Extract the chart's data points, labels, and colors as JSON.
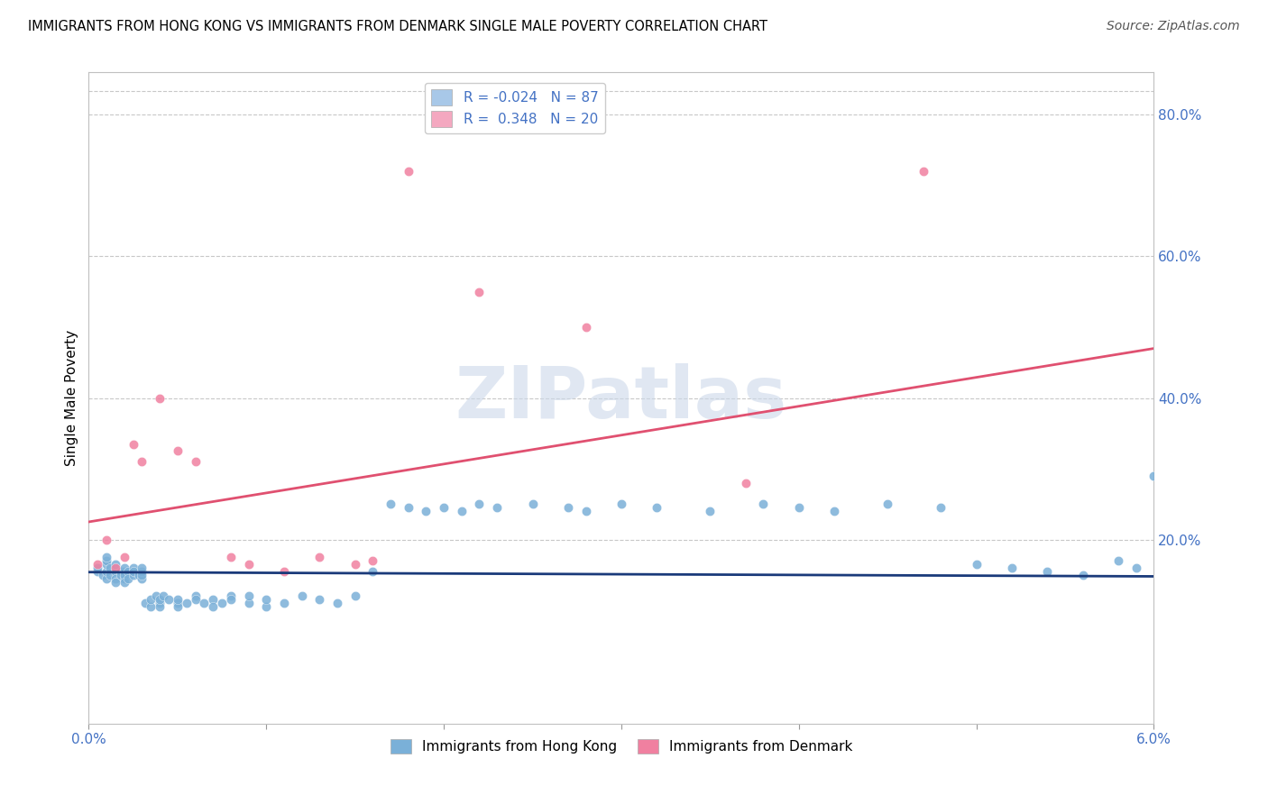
{
  "title": "IMMIGRANTS FROM HONG KONG VS IMMIGRANTS FROM DENMARK SINGLE MALE POVERTY CORRELATION CHART",
  "source": "Source: ZipAtlas.com",
  "ylabel": "Single Male Poverty",
  "right_yticks": [
    "80.0%",
    "60.0%",
    "40.0%",
    "20.0%"
  ],
  "right_ytick_vals": [
    0.8,
    0.6,
    0.4,
    0.2
  ],
  "xmin": 0.0,
  "xmax": 0.06,
  "ymin": -0.06,
  "ymax": 0.86,
  "legend_entry_1_label_r": "R = -0.024",
  "legend_entry_1_label_n": "N = 87",
  "legend_entry_2_label_r": "R =  0.348",
  "legend_entry_2_label_n": "N = 20",
  "legend_color_1": "#a8c8e8",
  "legend_color_2": "#f4a8c0",
  "hk_color": "#7ab0d8",
  "dk_color": "#f080a0",
  "hk_line_color": "#1a3a7a",
  "dk_line_color": "#e05070",
  "watermark": "ZIPatlas",
  "hk_x": [
    0.0005,
    0.0005,
    0.0008,
    0.001,
    0.001,
    0.001,
    0.001,
    0.0012,
    0.0012,
    0.0015,
    0.0015,
    0.0015,
    0.0015,
    0.0018,
    0.0018,
    0.002,
    0.002,
    0.002,
    0.002,
    0.002,
    0.0022,
    0.0022,
    0.0025,
    0.0025,
    0.0025,
    0.0028,
    0.003,
    0.003,
    0.003,
    0.003,
    0.0032,
    0.0035,
    0.0035,
    0.0038,
    0.004,
    0.004,
    0.004,
    0.0042,
    0.0045,
    0.005,
    0.005,
    0.005,
    0.0055,
    0.006,
    0.006,
    0.0065,
    0.007,
    0.007,
    0.0075,
    0.008,
    0.008,
    0.009,
    0.009,
    0.01,
    0.01,
    0.011,
    0.012,
    0.013,
    0.014,
    0.015,
    0.016,
    0.017,
    0.018,
    0.019,
    0.02,
    0.021,
    0.022,
    0.023,
    0.025,
    0.027,
    0.028,
    0.03,
    0.032,
    0.035,
    0.038,
    0.04,
    0.042,
    0.045,
    0.048,
    0.05,
    0.052,
    0.054,
    0.056,
    0.058,
    0.059,
    0.06,
    0.001
  ],
  "hk_y": [
    0.155,
    0.16,
    0.15,
    0.145,
    0.155,
    0.165,
    0.17,
    0.15,
    0.16,
    0.155,
    0.145,
    0.165,
    0.14,
    0.155,
    0.15,
    0.155,
    0.145,
    0.16,
    0.15,
    0.14,
    0.155,
    0.145,
    0.15,
    0.16,
    0.155,
    0.15,
    0.145,
    0.155,
    0.15,
    0.16,
    0.11,
    0.105,
    0.115,
    0.12,
    0.11,
    0.105,
    0.115,
    0.12,
    0.115,
    0.11,
    0.105,
    0.115,
    0.11,
    0.12,
    0.115,
    0.11,
    0.115,
    0.105,
    0.11,
    0.12,
    0.115,
    0.11,
    0.12,
    0.105,
    0.115,
    0.11,
    0.12,
    0.115,
    0.11,
    0.12,
    0.155,
    0.25,
    0.245,
    0.24,
    0.245,
    0.24,
    0.25,
    0.245,
    0.25,
    0.245,
    0.24,
    0.25,
    0.245,
    0.24,
    0.25,
    0.245,
    0.24,
    0.25,
    0.245,
    0.165,
    0.16,
    0.155,
    0.15,
    0.17,
    0.16,
    0.29,
    0.175
  ],
  "dk_x": [
    0.0005,
    0.001,
    0.0015,
    0.002,
    0.0025,
    0.003,
    0.004,
    0.005,
    0.006,
    0.008,
    0.009,
    0.011,
    0.013,
    0.015,
    0.016,
    0.018,
    0.022,
    0.028,
    0.037,
    0.047
  ],
  "dk_y": [
    0.165,
    0.2,
    0.16,
    0.175,
    0.335,
    0.31,
    0.4,
    0.325,
    0.31,
    0.175,
    0.165,
    0.155,
    0.175,
    0.165,
    0.17,
    0.72,
    0.55,
    0.5,
    0.28,
    0.72
  ],
  "hk_trend_x": [
    0.0,
    0.06
  ],
  "hk_trend_y": [
    0.154,
    0.148
  ],
  "dk_trend_x": [
    0.0,
    0.06
  ],
  "dk_trend_y": [
    0.225,
    0.47
  ]
}
